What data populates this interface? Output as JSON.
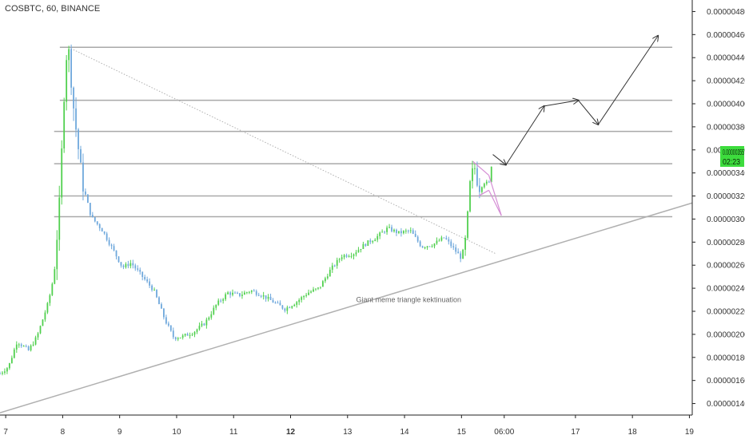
{
  "header": {
    "ticker": "COSBTC, 60, BINANCE"
  },
  "annotation": "Giant meme triangle kektinuation",
  "price_label": {
    "price": "0.00000355",
    "countdown": "02:23"
  },
  "colors": {
    "up": "#51d04f",
    "down": "#6fa8dc",
    "hline": "#a9a9a9",
    "trend": "#b0b0b0",
    "flag": "#d58ed5",
    "label_bg": "#3ddc3d",
    "axis_text": "#333333"
  },
  "chart_data": {
    "type": "candlestick",
    "title": "COSBTC, 60, BINANCE",
    "y_axis": {
      "position": "right",
      "ticks": [
        "0.00000140",
        "0.00000160",
        "0.00000180",
        "0.00000200",
        "0.00000220",
        "0.00000240",
        "0.00000260",
        "0.00000280",
        "0.00000300",
        "0.00000320",
        "0.00000340",
        "0.00000360",
        "0.00000380",
        "0.00000400",
        "0.00000420",
        "0.00000440",
        "0.00000460",
        "0.00000480"
      ],
      "ylim": [
        1.3e-06,
        4.9e-06
      ]
    },
    "x_axis": {
      "ticks": [
        {
          "label": "7",
          "bold": false
        },
        {
          "label": "8",
          "bold": false
        },
        {
          "label": "9",
          "bold": false
        },
        {
          "label": "10",
          "bold": false
        },
        {
          "label": "11",
          "bold": false
        },
        {
          "label": "12",
          "bold": true
        },
        {
          "label": "13",
          "bold": false
        },
        {
          "label": "14",
          "bold": false
        },
        {
          "label": "15",
          "bold": false
        },
        {
          "label": "06:00",
          "bold": false
        },
        {
          "label": "17",
          "bold": false
        },
        {
          "label": "18",
          "bold": false
        },
        {
          "label": "19",
          "bold": false
        }
      ],
      "tick_days": [
        7,
        8,
        9,
        10,
        11,
        12,
        13,
        14,
        15,
        15.75,
        17,
        18,
        19
      ],
      "xlim": [
        6.9,
        19.05
      ]
    },
    "horizontal_levels": [
      3.02e-06,
      3.2e-06,
      3.48e-06,
      3.76e-06,
      4.03e-06,
      4.49e-06
    ],
    "trend_lines": [
      {
        "from": [
          6.9,
          1.32e-06
        ],
        "to": [
          19.05,
          3.14e-06
        ],
        "style": "solid"
      },
      {
        "from": [
          8.1,
          4.49e-06
        ],
        "to": [
          15.6,
          2.7e-06
        ],
        "style": "dotted"
      }
    ],
    "flag_pattern": [
      {
        "from": [
          15.2,
          3.5e-06
        ],
        "to": [
          15.48,
          3.38e-06
        ]
      },
      {
        "from": [
          15.3,
          3.2e-06
        ],
        "to": [
          15.48,
          3.25e-06
        ]
      },
      {
        "from": [
          15.48,
          3.38e-06
        ],
        "to": [
          15.7,
          3.03e-06
        ]
      },
      {
        "from": [
          15.48,
          3.25e-06
        ],
        "to": [
          15.7,
          3.03e-06
        ]
      }
    ],
    "projection_path": [
      [
        15.55,
        3.56e-06
      ],
      [
        15.78,
        3.47e-06
      ],
      [
        16.45,
        3.98e-06
      ],
      [
        17.05,
        4.03e-06
      ],
      [
        17.4,
        3.82e-06
      ],
      [
        18.45,
        4.59e-06
      ]
    ],
    "wave_path": [
      [
        6.9,
        1.66e-06
      ],
      [
        7.05,
        1.72e-06
      ],
      [
        7.2,
        1.94e-06
      ],
      [
        7.4,
        1.86e-06
      ],
      [
        7.55,
        1.98e-06
      ],
      [
        7.75,
        2.28e-06
      ],
      [
        7.85,
        2.52e-06
      ],
      [
        7.95,
        3.18e-06
      ],
      [
        8.05,
        4.38e-06
      ],
      [
        8.1,
        4.49e-06
      ],
      [
        8.2,
        3.92e-06
      ],
      [
        8.35,
        3.3e-06
      ],
      [
        8.5,
        3.02e-06
      ],
      [
        8.7,
        2.9e-06
      ],
      [
        8.9,
        2.72e-06
      ],
      [
        9.05,
        2.58e-06
      ],
      [
        9.2,
        2.62e-06
      ],
      [
        9.4,
        2.5e-06
      ],
      [
        9.6,
        2.38e-06
      ],
      [
        9.8,
        2.12e-06
      ],
      [
        9.95,
        1.97e-06
      ],
      [
        10.1,
        1.98e-06
      ],
      [
        10.3,
        2.02e-06
      ],
      [
        10.5,
        2.1e-06
      ],
      [
        10.7,
        2.26e-06
      ],
      [
        10.9,
        2.36e-06
      ],
      [
        11.1,
        2.34e-06
      ],
      [
        11.3,
        2.38e-06
      ],
      [
        11.5,
        2.34e-06
      ],
      [
        11.7,
        2.28e-06
      ],
      [
        11.9,
        2.22e-06
      ],
      [
        12.1,
        2.28e-06
      ],
      [
        12.3,
        2.36e-06
      ],
      [
        12.5,
        2.4e-06
      ],
      [
        12.7,
        2.56e-06
      ],
      [
        12.9,
        2.68e-06
      ],
      [
        13.1,
        2.7e-06
      ],
      [
        13.3,
        2.78e-06
      ],
      [
        13.5,
        2.84e-06
      ],
      [
        13.7,
        2.92e-06
      ],
      [
        13.9,
        2.88e-06
      ],
      [
        14.1,
        2.9e-06
      ],
      [
        14.3,
        2.76e-06
      ],
      [
        14.5,
        2.78e-06
      ],
      [
        14.7,
        2.84e-06
      ],
      [
        14.9,
        2.72e-06
      ],
      [
        15.0,
        2.66e-06
      ],
      [
        15.08,
        2.84e-06
      ],
      [
        15.15,
        3.3e-06
      ],
      [
        15.22,
        3.48e-06
      ],
      [
        15.3,
        3.26e-06
      ],
      [
        15.4,
        3.32e-06
      ],
      [
        15.48,
        3.3e-06
      ],
      [
        15.55,
        3.56e-06
      ]
    ]
  }
}
